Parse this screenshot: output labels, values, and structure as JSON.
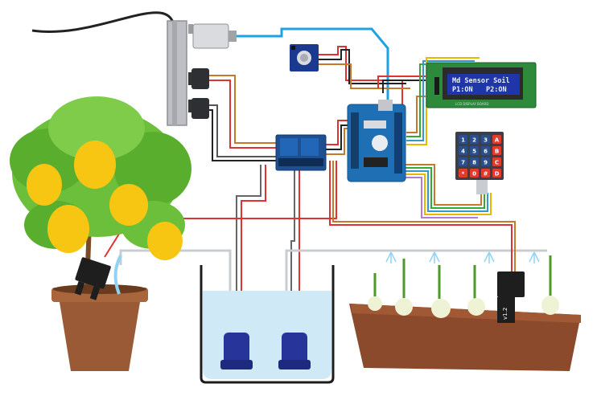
{
  "lcd": {
    "line1": "Md Sensor Soil",
    "line2_left": "P1:ON",
    "line2_right": "P2:ON",
    "board_caption": "LCD DISPLAY BOARD"
  },
  "keypad": {
    "keys": [
      [
        "1",
        "2",
        "3",
        "A"
      ],
      [
        "4",
        "5",
        "6",
        "B"
      ],
      [
        "7",
        "8",
        "9",
        "C"
      ],
      [
        "*",
        "0",
        "#",
        "D"
      ]
    ]
  },
  "soil_sensor_right": {
    "version": "v1.2"
  },
  "colors": {
    "usb_cable": "#1fa3e0",
    "water": "#cfe9f7",
    "pump": "#27349a",
    "arduino": "#1f6fb5",
    "relay": "#1d4f91",
    "lcd_board": "#2d8a3a",
    "lcd_screen": "#1f35a8",
    "pot": "#9a5a35",
    "planter": "#8b4a2b",
    "lemon": "#f7c613",
    "leaf": "#6cbf3a",
    "keypad_dark": "#3d3f47",
    "keypad_red": "#e23b2e",
    "power_strip": "#bdbfc4"
  }
}
